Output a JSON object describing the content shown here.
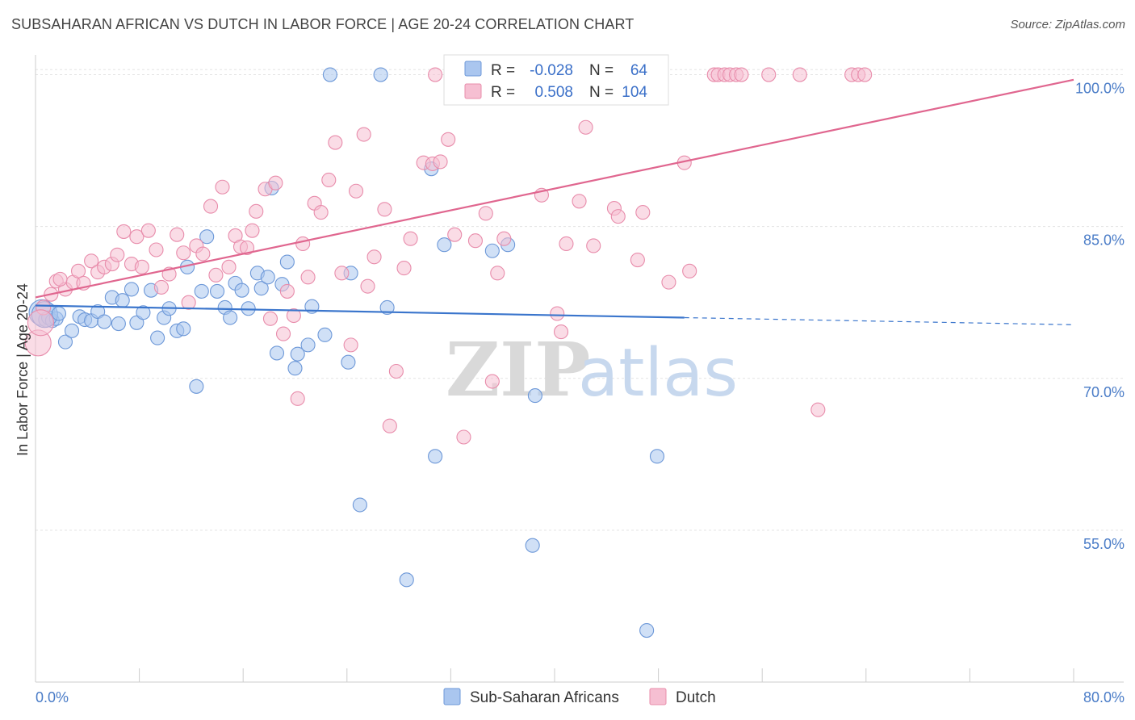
{
  "title": "SUBSAHARAN AFRICAN VS DUTCH IN LABOR FORCE | AGE 20-24 CORRELATION CHART",
  "source": "Source: ZipAtlas.com",
  "watermark": {
    "zip": "ZIP",
    "atlas": "atlas"
  },
  "legend": {
    "r_label": "R =",
    "n_label": "N =",
    "rows": [
      {
        "r": "-0.028",
        "n": "64",
        "color": "#aac6ef",
        "stroke": "#6d98d8"
      },
      {
        "r": "0.508",
        "n": "104",
        "color": "#f6bfd2",
        "stroke": "#e88cab"
      }
    ]
  },
  "bottom_legend": [
    {
      "label": "Sub-Saharan Africans",
      "color": "#aac6ef",
      "stroke": "#6d98d8"
    },
    {
      "label": "Dutch",
      "color": "#f6bfd2",
      "stroke": "#e88cab"
    }
  ],
  "chart_data": {
    "type": "scatter",
    "title": "SUBSAHARAN AFRICAN VS DUTCH IN LABOR FORCE | AGE 20-24 CORRELATION CHART",
    "xlabel": "",
    "ylabel": "In Labor Force | Age 20-24",
    "xlim": [
      0,
      80
    ],
    "ylim": [
      40,
      101
    ],
    "x_tick_labels": [
      "0.0%",
      "80.0%"
    ],
    "y_ticks": [
      55,
      70,
      85,
      100
    ],
    "y_tick_labels": [
      "55.0%",
      "70.0%",
      "85.0%",
      "100.0%"
    ],
    "grid": true,
    "legend_placement": "top-center",
    "series": [
      {
        "name": "Sub-Saharan Africans",
        "color": "#6d98d8",
        "fill": "#aac6ef",
        "trend": {
          "x": [
            0,
            50
          ],
          "y": [
            77.2,
            76.0
          ],
          "dashed_extension": {
            "x": [
              50,
              80
            ],
            "y": [
              76.0,
              75.3
            ]
          }
        },
        "points": [
          [
            0.5,
            76.5
          ],
          [
            0.8,
            75.8
          ],
          [
            1.0,
            76.0
          ],
          [
            1.3,
            75.7
          ],
          [
            1.6,
            75.9
          ],
          [
            2.3,
            73.6
          ],
          [
            2.8,
            74.7
          ],
          [
            3.4,
            76.1
          ],
          [
            3.8,
            75.8
          ],
          [
            4.3,
            75.7
          ],
          [
            4.8,
            76.6
          ],
          [
            5.3,
            75.6
          ],
          [
            5.9,
            78.0
          ],
          [
            6.4,
            75.4
          ],
          [
            6.7,
            77.7
          ],
          [
            7.4,
            78.8
          ],
          [
            7.8,
            75.5
          ],
          [
            8.3,
            76.5
          ],
          [
            8.9,
            78.7
          ],
          [
            9.4,
            74.0
          ],
          [
            9.9,
            76.0
          ],
          [
            10.3,
            76.9
          ],
          [
            10.9,
            74.7
          ],
          [
            11.4,
            74.9
          ],
          [
            11.7,
            81.0
          ],
          [
            12.4,
            69.2
          ],
          [
            12.8,
            78.6
          ],
          [
            13.2,
            84.0
          ],
          [
            14.0,
            78.6
          ],
          [
            14.6,
            77.0
          ],
          [
            15.0,
            76.0
          ],
          [
            15.4,
            79.4
          ],
          [
            15.9,
            78.7
          ],
          [
            16.4,
            76.9
          ],
          [
            17.1,
            80.4
          ],
          [
            17.4,
            78.9
          ],
          [
            17.9,
            80.0
          ],
          [
            18.2,
            88.8
          ],
          [
            18.6,
            72.5
          ],
          [
            19.0,
            79.3
          ],
          [
            19.4,
            81.5
          ],
          [
            20.2,
            72.4
          ],
          [
            20.0,
            71.0
          ],
          [
            21.0,
            73.3
          ],
          [
            21.3,
            77.1
          ],
          [
            22.3,
            74.3
          ],
          [
            24.1,
            71.6
          ],
          [
            24.3,
            80.4
          ],
          [
            25.0,
            57.5
          ],
          [
            26.6,
            100.0
          ],
          [
            27.1,
            77.0
          ],
          [
            28.6,
            50.1
          ],
          [
            30.5,
            90.7
          ],
          [
            30.8,
            62.3
          ],
          [
            31.5,
            83.2
          ],
          [
            35.2,
            82.6
          ],
          [
            36.4,
            83.2
          ],
          [
            38.3,
            53.5
          ],
          [
            38.5,
            68.3
          ],
          [
            47.1,
            45.1
          ],
          [
            47.9,
            62.3
          ],
          [
            22.7,
            100.0
          ],
          [
            0.7,
            76.3
          ],
          [
            1.8,
            76.4
          ]
        ]
      },
      {
        "name": "Dutch",
        "color": "#e88cab",
        "fill": "#f6bfd2",
        "trend": {
          "x": [
            0,
            80
          ],
          "y": [
            78.0,
            99.5
          ]
        },
        "points": [
          [
            0.2,
            73.5
          ],
          [
            0.6,
            77.0
          ],
          [
            1.2,
            78.3
          ],
          [
            1.6,
            79.6
          ],
          [
            2.3,
            78.8
          ],
          [
            2.9,
            79.5
          ],
          [
            3.3,
            80.6
          ],
          [
            3.7,
            79.4
          ],
          [
            4.3,
            81.6
          ],
          [
            4.8,
            80.5
          ],
          [
            5.3,
            81.0
          ],
          [
            5.9,
            81.3
          ],
          [
            6.3,
            82.2
          ],
          [
            6.8,
            84.5
          ],
          [
            7.4,
            81.3
          ],
          [
            7.8,
            84.0
          ],
          [
            8.2,
            81.0
          ],
          [
            8.7,
            84.6
          ],
          [
            9.3,
            82.7
          ],
          [
            9.7,
            79.0
          ],
          [
            10.3,
            80.3
          ],
          [
            10.9,
            84.2
          ],
          [
            11.4,
            82.4
          ],
          [
            11.8,
            77.5
          ],
          [
            12.4,
            83.1
          ],
          [
            12.9,
            82.3
          ],
          [
            13.5,
            87.0
          ],
          [
            13.9,
            80.2
          ],
          [
            14.4,
            88.9
          ],
          [
            14.9,
            81.0
          ],
          [
            15.4,
            84.1
          ],
          [
            15.8,
            83.0
          ],
          [
            16.3,
            82.9
          ],
          [
            16.7,
            84.6
          ],
          [
            17.0,
            86.5
          ],
          [
            17.7,
            88.7
          ],
          [
            18.1,
            75.9
          ],
          [
            18.5,
            89.3
          ],
          [
            19.1,
            74.4
          ],
          [
            19.4,
            78.6
          ],
          [
            19.9,
            76.2
          ],
          [
            20.2,
            68.0
          ],
          [
            20.6,
            83.3
          ],
          [
            21.0,
            80.0
          ],
          [
            21.5,
            87.3
          ],
          [
            22.0,
            86.4
          ],
          [
            22.6,
            89.6
          ],
          [
            23.1,
            93.3
          ],
          [
            23.6,
            80.4
          ],
          [
            24.3,
            73.3
          ],
          [
            24.7,
            88.5
          ],
          [
            25.3,
            94.1
          ],
          [
            25.6,
            79.1
          ],
          [
            26.1,
            82.0
          ],
          [
            26.9,
            86.7
          ],
          [
            27.3,
            65.3
          ],
          [
            27.8,
            70.7
          ],
          [
            28.4,
            80.9
          ],
          [
            28.9,
            83.8
          ],
          [
            29.9,
            91.3
          ],
          [
            30.6,
            91.2
          ],
          [
            31.2,
            91.4
          ],
          [
            31.8,
            93.6
          ],
          [
            32.3,
            84.2
          ],
          [
            33.0,
            64.2
          ],
          [
            33.9,
            83.6
          ],
          [
            34.7,
            86.3
          ],
          [
            35.2,
            69.7
          ],
          [
            35.6,
            80.4
          ],
          [
            36.1,
            83.8
          ],
          [
            37.2,
            100.0
          ],
          [
            39.0,
            88.1
          ],
          [
            40.2,
            76.4
          ],
          [
            40.5,
            74.6
          ],
          [
            40.9,
            83.3
          ],
          [
            41.9,
            87.5
          ],
          [
            42.4,
            94.8
          ],
          [
            43.0,
            83.1
          ],
          [
            44.6,
            86.8
          ],
          [
            44.9,
            86.0
          ],
          [
            46.4,
            81.7
          ],
          [
            46.8,
            86.4
          ],
          [
            48.8,
            79.5
          ],
          [
            50.0,
            91.3
          ],
          [
            50.4,
            80.6
          ],
          [
            52.3,
            100.0
          ],
          [
            52.6,
            100.0
          ],
          [
            53.1,
            100.0
          ],
          [
            53.5,
            100.0
          ],
          [
            54.0,
            100.0
          ],
          [
            54.4,
            100.0
          ],
          [
            56.5,
            100.0
          ],
          [
            58.9,
            100.0
          ],
          [
            60.3,
            66.9
          ],
          [
            62.9,
            100.0
          ],
          [
            63.4,
            100.0
          ],
          [
            63.9,
            100.0
          ],
          [
            41.8,
            100.0
          ],
          [
            40.5,
            100.0
          ],
          [
            38.9,
            100.0
          ],
          [
            33.6,
            100.0
          ],
          [
            30.8,
            100.0
          ],
          [
            0.4,
            75.5
          ],
          [
            1.9,
            79.8
          ]
        ]
      }
    ]
  }
}
